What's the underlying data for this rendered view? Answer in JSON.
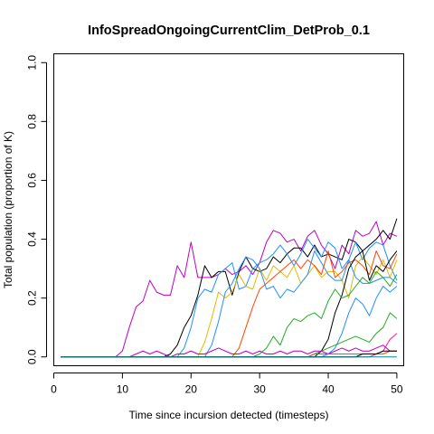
{
  "chart_data": {
    "type": "line",
    "title": "InfoSpreadOngoingCurrentClim_DetProb_0.1",
    "xlabel": "Time since incursion detected (timesteps)",
    "ylabel": "Total population (proportion of K)",
    "xlim": [
      0,
      51
    ],
    "ylim": [
      -0.03,
      1.03
    ],
    "xticks": [
      0,
      10,
      20,
      30,
      40,
      50
    ],
    "yticks": [
      0.0,
      0.2,
      0.4,
      0.6,
      0.8,
      1.0
    ],
    "xtick_labels": [
      "0",
      "10",
      "20",
      "30",
      "40",
      "50"
    ],
    "ytick_labels": [
      "0.0",
      "0.2",
      "0.4",
      "0.6",
      "0.8",
      "1.0"
    ],
    "grid": false,
    "legend": "none",
    "x": [
      1,
      2,
      3,
      4,
      5,
      6,
      7,
      8,
      9,
      10,
      11,
      12,
      13,
      14,
      15,
      16,
      17,
      18,
      19,
      20,
      21,
      22,
      23,
      24,
      25,
      26,
      27,
      28,
      29,
      30,
      31,
      32,
      33,
      34,
      35,
      36,
      37,
      38,
      39,
      40,
      41,
      42,
      43,
      44,
      45,
      46,
      47,
      48,
      49,
      50
    ],
    "series": [
      {
        "color": "#C000C0",
        "values": [
          0,
          0,
          0,
          0,
          0,
          0,
          0,
          0,
          0,
          0.02,
          0.1,
          0.17,
          0.19,
          0.26,
          0.22,
          0.21,
          0.21,
          0.31,
          0.27,
          0.39,
          0.27,
          0.27,
          0.27,
          0.28,
          0.3,
          0.28,
          0.29,
          0.31,
          0.28,
          0.32,
          0.39,
          0.43,
          0.42,
          0.39,
          0.4,
          0.36,
          0.41,
          0.43,
          0.38,
          0.35,
          0.3,
          0.38,
          0.35,
          0.43,
          0.41,
          0.42,
          0.46,
          0.38,
          0.42,
          0.41
        ]
      },
      {
        "color": "#000000",
        "values": [
          0,
          0,
          0,
          0,
          0,
          0,
          0,
          0,
          0,
          0,
          0,
          0,
          0,
          0,
          0,
          0,
          0.01,
          0.04,
          0.1,
          0.14,
          0.21,
          0.31,
          0.27,
          0.29,
          0.29,
          0.21,
          0.29,
          0.34,
          0.3,
          0.29,
          0.3,
          0.34,
          0.32,
          0.35,
          0.37,
          0.37,
          0.34,
          0.38,
          0.34,
          0.35,
          0.34,
          0.33,
          0.4,
          0.39,
          0.36,
          0.38,
          0.4,
          0.43,
          0.4,
          0.47
        ]
      },
      {
        "color": "#1E90FF",
        "values": [
          0,
          0,
          0,
          0,
          0,
          0,
          0,
          0,
          0,
          0,
          0,
          0,
          0,
          0,
          0,
          0,
          0,
          0,
          0.03,
          0.1,
          0.2,
          0.23,
          0.22,
          0.28,
          0.3,
          0.32,
          0.23,
          0.24,
          0.3,
          0.32,
          0.33,
          0.35,
          0.38,
          0.35,
          0.31,
          0.35,
          0.4,
          0.37,
          0.34,
          0.39,
          0.37,
          0.3,
          0.33,
          0.39,
          0.33,
          0.37,
          0.39,
          0.38,
          0.31,
          0.26
        ]
      },
      {
        "color": "#E6B800",
        "values": [
          0,
          0,
          0,
          0,
          0,
          0,
          0,
          0,
          0,
          0,
          0,
          0,
          0,
          0,
          0,
          0,
          0,
          0,
          0,
          0,
          0,
          0.05,
          0.13,
          0.22,
          0.2,
          0.22,
          0.28,
          0.24,
          0.23,
          0.3,
          0.26,
          0.31,
          0.29,
          0.27,
          0.31,
          0.25,
          0.28,
          0.31,
          0.27,
          0.29,
          0.29,
          0.26,
          0.2,
          0.31,
          0.34,
          0.31,
          0.28,
          0.33,
          0.27,
          0.33
        ]
      },
      {
        "color": "#1E90FF",
        "values": [
          0,
          0,
          0,
          0,
          0,
          0,
          0,
          0,
          0,
          0,
          0,
          0,
          0,
          0,
          0,
          0,
          0,
          0,
          0,
          0,
          0,
          0,
          0.04,
          0.12,
          0.22,
          0.25,
          0.3,
          0.34,
          0.33,
          0.3,
          0.23,
          0.24,
          0.2,
          0.23,
          0.22,
          0.25,
          0.28,
          0.36,
          0.32,
          0.28,
          0.26,
          0.26,
          0.33,
          0.27,
          0.25,
          0.25,
          0.26,
          0.27,
          0.27,
          0.25
        ]
      },
      {
        "color": "#FF4500",
        "values": [
          0,
          0,
          0,
          0,
          0,
          0,
          0,
          0,
          0,
          0,
          0,
          0,
          0,
          0,
          0,
          0,
          0,
          0,
          0,
          0,
          0,
          0,
          0,
          0,
          0,
          0,
          0.03,
          0.1,
          0.17,
          0.23,
          0.25,
          0.27,
          0.29,
          0.31,
          0.33,
          0.3,
          0.33,
          0.31,
          0.28,
          0.36,
          0.27,
          0.29,
          0.32,
          0.33,
          0.31,
          0.28,
          0.36,
          0.31,
          0.3,
          0.35
        ]
      },
      {
        "color": "#000000",
        "values": [
          0,
          0,
          0,
          0,
          0,
          0,
          0,
          0,
          0,
          0,
          0,
          0,
          0,
          0,
          0,
          0,
          0,
          0,
          0,
          0,
          0,
          0,
          0,
          0,
          0,
          0,
          0,
          0,
          0,
          0,
          0,
          0,
          0,
          0,
          0,
          0,
          0,
          0,
          0.02,
          0.06,
          0.15,
          0.21,
          0.3,
          0.34,
          0.36,
          0.26,
          0.31,
          0.29,
          0.33,
          0.36
        ]
      },
      {
        "color": "#1E90FF",
        "values": [
          0,
          0,
          0,
          0,
          0,
          0,
          0,
          0,
          0,
          0,
          0,
          0,
          0,
          0,
          0,
          0,
          0,
          0,
          0,
          0,
          0,
          0,
          0,
          0,
          0,
          0,
          0,
          0,
          0,
          0,
          0,
          0,
          0,
          0,
          0,
          0,
          0,
          0,
          0,
          0.01,
          0.03,
          0.08,
          0.15,
          0.2,
          0.18,
          0.14,
          0.2,
          0.24,
          0.22,
          0.24
        ]
      },
      {
        "color": "#22AA22",
        "values": [
          0,
          0,
          0,
          0,
          0,
          0,
          0,
          0,
          0,
          0,
          0,
          0,
          0,
          0,
          0,
          0,
          0,
          0,
          0,
          0,
          0,
          0,
          0,
          0,
          0,
          0,
          0,
          0,
          0,
          0.01,
          0.03,
          0.07,
          0.04,
          0.1,
          0.13,
          0.12,
          0.14,
          0.15,
          0.13,
          0.19,
          0.23,
          0.2,
          0.21,
          0.24,
          0.27,
          0.25,
          0.29,
          0.27,
          0.24,
          0.28
        ]
      },
      {
        "color": "#22AA22",
        "values": [
          0,
          0,
          0,
          0,
          0,
          0,
          0,
          0,
          0,
          0,
          0,
          0,
          0,
          0,
          0,
          0,
          0,
          0,
          0,
          0,
          0,
          0,
          0,
          0,
          0,
          0,
          0,
          0,
          0,
          0,
          0,
          0,
          0,
          0,
          0,
          0,
          0,
          0.01,
          0.02,
          0.03,
          0.04,
          0.05,
          0.06,
          0.07,
          0.06,
          0.05,
          0.08,
          0.1,
          0.15,
          0.13
        ]
      },
      {
        "color": "#C000C0",
        "values": [
          0,
          0,
          0,
          0,
          0,
          0,
          0,
          0,
          0,
          0,
          0,
          0.01,
          0.02,
          0.01,
          0.02,
          0.01,
          0,
          0.01,
          0.01,
          0.02,
          0.01,
          0.01,
          0.02,
          0.03,
          0.02,
          0.01,
          0.01,
          0.02,
          0.01,
          0.02,
          0.01,
          0.01,
          0.02,
          0.01,
          0.02,
          0.02,
          0.01,
          0.02,
          0.02,
          0.01,
          0.02,
          0.03,
          0.02,
          0.03,
          0.02,
          0.02,
          0.03,
          0.04,
          0.02,
          0.02
        ]
      },
      {
        "color": "#FF1493",
        "values": [
          0,
          0,
          0,
          0,
          0,
          0,
          0,
          0,
          0,
          0,
          0,
          0,
          0,
          0,
          0,
          0,
          0,
          0,
          0,
          0,
          0,
          0,
          0,
          0,
          0,
          0,
          0,
          0,
          0,
          0,
          0,
          0,
          0,
          0,
          0,
          0,
          0,
          0,
          0,
          0,
          0,
          0,
          0,
          0,
          0,
          0,
          0.01,
          0.02,
          0.06,
          0.08
        ]
      },
      {
        "color": "#FF4500",
        "values": [
          0,
          0,
          0,
          0,
          0,
          0,
          0,
          0,
          0,
          0,
          0,
          0,
          0,
          0,
          0,
          0,
          0,
          0,
          0,
          0,
          0,
          0,
          0,
          0,
          0,
          0,
          0,
          0,
          0,
          0,
          0,
          0,
          0,
          0,
          0,
          0,
          0,
          0.01,
          0.01,
          0.01,
          0.01,
          0.01,
          0.01,
          0.01,
          0.01,
          0.01,
          0.01,
          0.01,
          0.02,
          0.02
        ]
      },
      {
        "color": "#000000",
        "values": [
          0,
          0,
          0,
          0,
          0,
          0,
          0,
          0,
          0,
          0,
          0,
          0,
          0,
          0,
          0,
          0,
          0,
          0,
          0,
          0,
          0,
          0,
          0,
          0,
          0,
          0,
          0,
          0,
          0,
          0,
          0,
          0,
          0,
          0,
          0,
          0,
          0,
          0,
          0,
          0,
          0,
          0,
          0,
          0,
          0.01,
          0.01,
          0.01,
          0.02,
          0.02,
          0.02
        ]
      },
      {
        "color": "#008B8B",
        "values": [
          0,
          0,
          0,
          0,
          0,
          0,
          0,
          0,
          0,
          0,
          0,
          0,
          0,
          0,
          0,
          0,
          0,
          0,
          0,
          0,
          0,
          0,
          0,
          0,
          0,
          0,
          0,
          0,
          0,
          0,
          0,
          0,
          0,
          0,
          0,
          0,
          0,
          0,
          0,
          0,
          0,
          0,
          0,
          0,
          0,
          0,
          0,
          0,
          0,
          0
        ]
      }
    ]
  }
}
